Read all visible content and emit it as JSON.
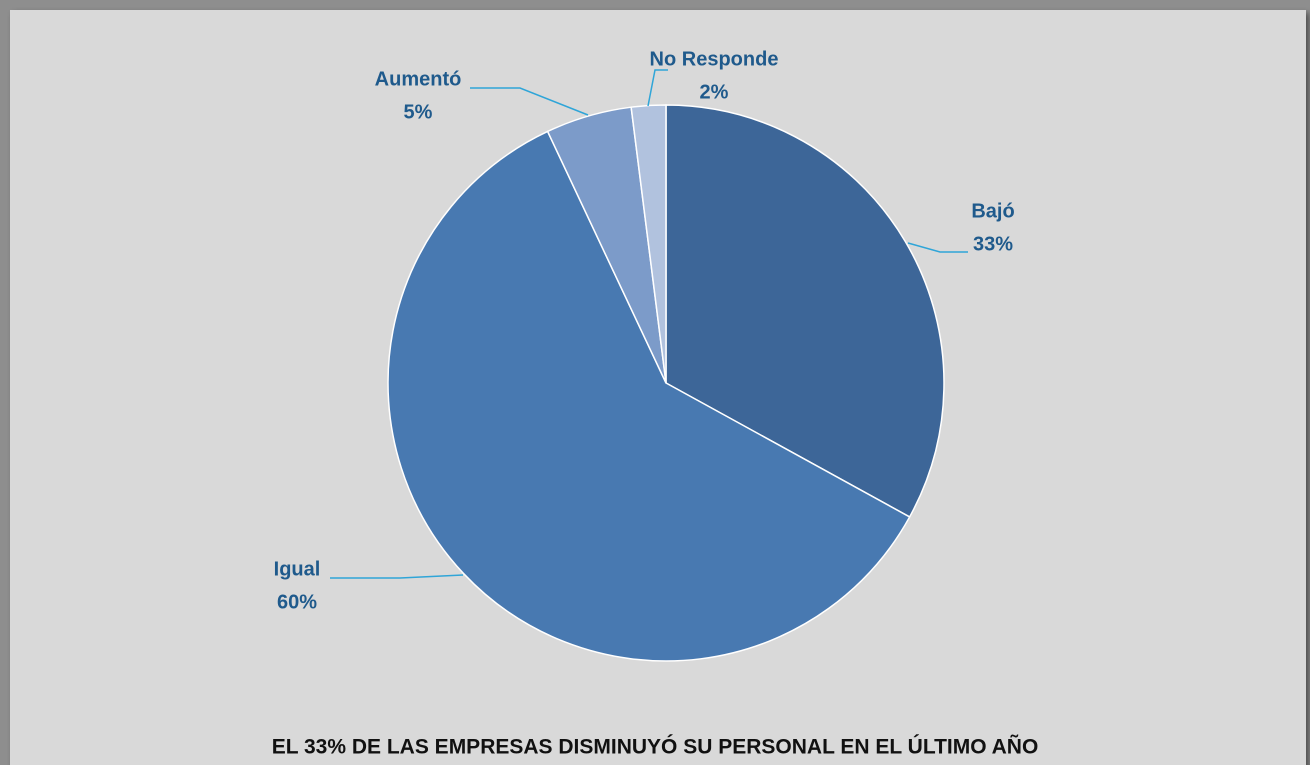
{
  "chart_data": {
    "type": "pie",
    "title": "EL 33% DE LAS EMPRESAS DISMINUYÓ SU PERSONAL EN EL ÚLTIMO AÑO",
    "categories": [
      "Bajó",
      "Igual",
      "Aumentó",
      "No Responde"
    ],
    "values": [
      33,
      60,
      5,
      2
    ],
    "value_labels": [
      "33%",
      "60%",
      "5%",
      "2%"
    ],
    "colors": [
      "#3d6698",
      "#4879b1",
      "#7c9bc9",
      "#b1c2de"
    ]
  }
}
